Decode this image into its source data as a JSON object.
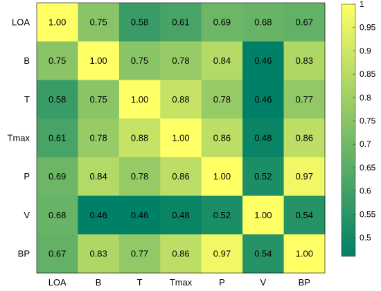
{
  "chart_data": {
    "type": "heatmap",
    "title": "",
    "xlabel": "",
    "ylabel": "",
    "categories": [
      "LOA",
      "B",
      "T",
      "Tmax",
      "P",
      "V",
      "BP"
    ],
    "values": [
      [
        1.0,
        0.75,
        0.58,
        0.61,
        0.69,
        0.68,
        0.67
      ],
      [
        0.75,
        1.0,
        0.75,
        0.78,
        0.84,
        0.46,
        0.83
      ],
      [
        0.58,
        0.75,
        1.0,
        0.88,
        0.78,
        0.46,
        0.77
      ],
      [
        0.61,
        0.78,
        0.88,
        1.0,
        0.86,
        0.48,
        0.86
      ],
      [
        0.69,
        0.84,
        0.78,
        0.86,
        1.0,
        0.52,
        0.97
      ],
      [
        0.68,
        0.46,
        0.46,
        0.48,
        0.52,
        1.0,
        0.54
      ],
      [
        0.67,
        0.83,
        0.77,
        0.86,
        0.97,
        0.54,
        1.0
      ]
    ],
    "cell_labels": [
      [
        "1.00",
        "0.75",
        "0.58",
        "0.61",
        "0.69",
        "0.68",
        "0.67"
      ],
      [
        "0.75",
        "1.00",
        "0.75",
        "0.78",
        "0.84",
        "0.46",
        "0.83"
      ],
      [
        "0.58",
        "0.75",
        "1.00",
        "0.88",
        "0.78",
        "0.46",
        "0.77"
      ],
      [
        "0.61",
        "0.78",
        "0.88",
        "1.00",
        "0.86",
        "0.48",
        "0.86"
      ],
      [
        "0.69",
        "0.84",
        "0.78",
        "0.86",
        "1.00",
        "0.52",
        "0.97"
      ],
      [
        "0.68",
        "0.46",
        "0.46",
        "0.48",
        "0.52",
        "1.00",
        "0.54"
      ],
      [
        "0.67",
        "0.83",
        "0.77",
        "0.86",
        "0.97",
        "0.54",
        "1.00"
      ]
    ],
    "colorbar": {
      "range": [
        0.46,
        1.0
      ],
      "ticks": [
        0.5,
        0.55,
        0.6,
        0.65,
        0.7,
        0.75,
        0.8,
        0.85,
        0.9,
        0.95,
        1.0
      ],
      "tick_labels": [
        "0.5",
        "0.55",
        "0.6",
        "0.65",
        "0.7",
        "0.75",
        "0.8",
        "0.85",
        "0.9",
        "0.95",
        "1"
      ]
    },
    "colormap": "summer",
    "colormap_low": "#008066",
    "colormap_high": "#ffff66",
    "grid": false,
    "legend": "colorbar-right"
  }
}
